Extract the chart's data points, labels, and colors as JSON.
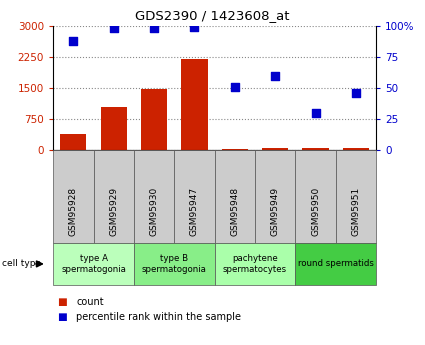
{
  "title": "GDS2390 / 1423608_at",
  "samples": [
    "GSM95928",
    "GSM95929",
    "GSM95930",
    "GSM95947",
    "GSM95948",
    "GSM95949",
    "GSM95950",
    "GSM95951"
  ],
  "counts": [
    400,
    1050,
    1480,
    2200,
    25,
    45,
    50,
    45
  ],
  "percentiles": [
    88,
    98,
    98,
    99,
    51,
    60,
    30,
    46
  ],
  "bar_color": "#cc2200",
  "scatter_color": "#0000cc",
  "left_ylim": [
    0,
    3000
  ],
  "right_ylim": [
    0,
    100
  ],
  "left_yticks": [
    0,
    750,
    1500,
    2250,
    3000
  ],
  "right_yticks": [
    0,
    25,
    50,
    75,
    100
  ],
  "right_yticklabels": [
    "0",
    "25",
    "50",
    "75",
    "100%"
  ],
  "cell_types": [
    {
      "label": "type A\nspermatogonia",
      "samples": [
        0,
        1
      ],
      "color": "#bbffbb"
    },
    {
      "label": "type B\nspermatogonia",
      "samples": [
        2,
        3
      ],
      "color": "#88ee88"
    },
    {
      "label": "pachytene\nspermatocytes",
      "samples": [
        4,
        5
      ],
      "color": "#aaffaa"
    },
    {
      "label": "round spermatids",
      "samples": [
        6,
        7
      ],
      "color": "#44cc44"
    }
  ],
  "cell_type_label": "cell type",
  "legend_count": "count",
  "legend_percentile": "percentile rank within the sample",
  "grid_color": "#888888",
  "sample_bg_color": "#cccccc"
}
